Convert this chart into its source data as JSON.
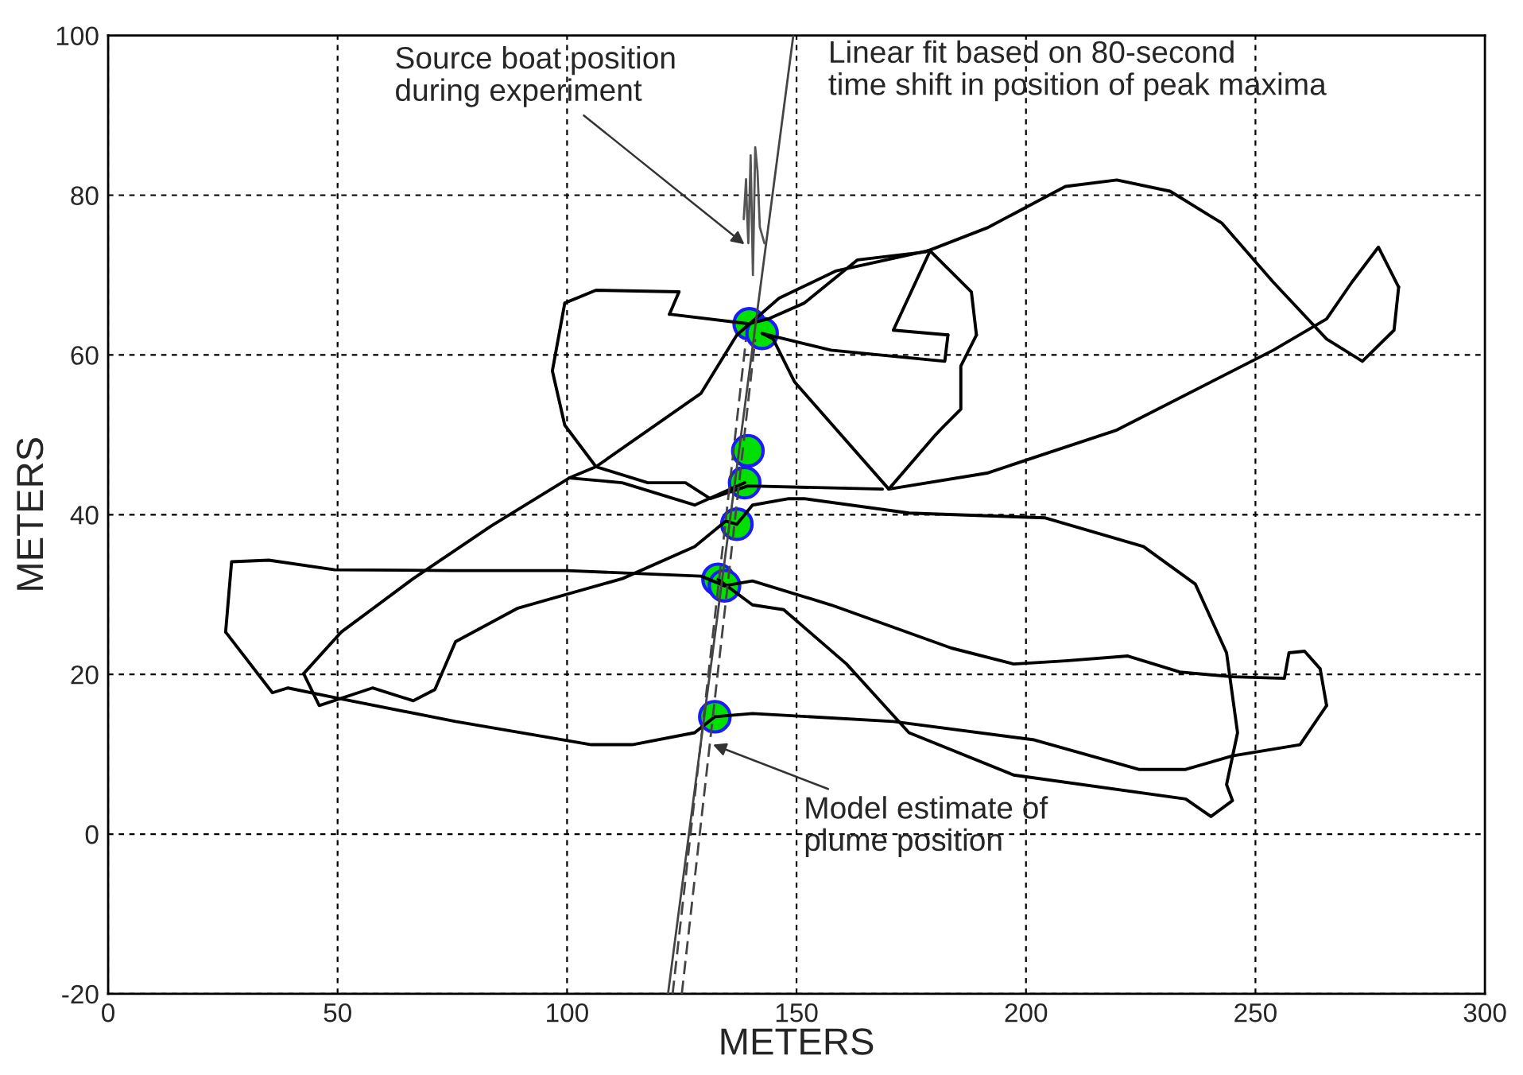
{
  "chart_data": {
    "type": "line",
    "xlabel": "METERS",
    "ylabel": "METERS",
    "xlim": [
      0,
      300
    ],
    "ylim": [
      -20,
      100
    ],
    "xticks": [
      0,
      50,
      100,
      150,
      200,
      250,
      300
    ],
    "yticks": [
      -20,
      0,
      20,
      40,
      60,
      80,
      100
    ],
    "grid": true,
    "series": [
      {
        "color": "#000000",
        "x": [
          134.3,
          129.2,
          100,
          75,
          49.4,
          35,
          26.9,
          25.6
        ],
        "values": [
          31.1,
          32.3,
          33,
          33,
          33.1,
          34.3,
          34.1,
          25.3
        ]
      },
      {
        "color": "#000000",
        "x": [
          25.6,
          35.8,
          39.2,
          49.4,
          75.7,
          105.3,
          114.2,
          127.8,
          132.2,
          140.4,
          171.1,
          201.8,
          224.6,
          234.8,
          245,
          259.7,
          265.5
        ],
        "values": [
          25.3,
          17.7,
          18.3,
          17.1,
          14.1,
          11.2,
          11.2,
          12.7,
          14.7,
          15.1,
          14.1,
          11.8,
          8.1,
          8.1,
          9.8,
          11.2,
          16.1
        ]
      },
      {
        "color": "#000000",
        "x": [
          265.5,
          264.1,
          260.7,
          257.3,
          256.3,
          245,
          233.5,
          222.2,
          208.6,
          197.3,
          183.7,
          157.5,
          140.4,
          134.3
        ],
        "values": [
          16.1,
          20.7,
          22.9,
          22.7,
          19.5,
          19.7,
          20.3,
          22.3,
          21.7,
          21.3,
          23.3,
          28.7,
          31.7,
          31.1
        ]
      },
      {
        "color": "#000000",
        "x": [
          137,
          134.6,
          127.8,
          112.1,
          89.3,
          75.7,
          71.2,
          66.5,
          57.6,
          46,
          42.6
        ],
        "values": [
          38.8,
          39.2,
          36,
          32,
          28.3,
          24.1,
          18.1,
          16.7,
          18.3,
          16.1,
          20.1
        ]
      },
      {
        "color": "#000000",
        "x": [
          42.6,
          50.8,
          66.5,
          83.5,
          100.5,
          106.3,
          129.2,
          137,
          146.2,
          158.5,
          179,
          188.1,
          189.2
        ],
        "values": [
          20.1,
          25.3,
          32,
          38.6,
          44.6,
          46,
          55.2,
          62.5,
          67.1,
          70.5,
          73.1,
          67.9,
          62.5
        ]
      },
      {
        "color": "#000000",
        "x": [
          189.2,
          185.8,
          185.8,
          182.3,
          180.3,
          170.1,
          149.6,
          144.9,
          142.5
        ],
        "values": [
          62.5,
          58.6,
          53.2,
          51.2,
          50,
          43.2,
          56.6,
          62,
          62.7
        ]
      },
      {
        "color": "#000000",
        "x": [
          170.1,
          191.5,
          219.8,
          253.9,
          265.5,
          271,
          276.8,
          281.2
        ],
        "values": [
          43.2,
          45.2,
          50.6,
          60.6,
          64.5,
          69.1,
          73.5,
          68.5
        ]
      },
      {
        "color": "#000000",
        "x": [
          281.2,
          280.2,
          273.3,
          265.5,
          253.9,
          242.7,
          231.4,
          219.8,
          208.6,
          191.5,
          178,
          163.3,
          151.7,
          143.8,
          139.7
        ],
        "values": [
          68.5,
          63.1,
          59.2,
          62,
          69.1,
          76.5,
          80.5,
          81.9,
          81.1,
          75.9,
          72.9,
          71.9,
          66.5,
          64.5,
          63.9
        ]
      },
      {
        "color": "#000000",
        "x": [
          142.5,
          157.5,
          182.3,
          183
        ],
        "values": [
          62.7,
          60.6,
          59.2,
          62.5
        ]
      },
      {
        "color": "#000000",
        "x": [
          183,
          171.1
        ],
        "values": [
          62.5,
          63.1
        ]
      },
      {
        "color": "#000000",
        "x": [
          171.1,
          179
        ],
        "values": [
          63.1,
          72.9
        ]
      },
      {
        "color": "#000000",
        "x": [
          139.7,
          122.3
        ],
        "values": [
          63.9,
          65.1
        ]
      },
      {
        "color": "#000000",
        "x": [
          122.3,
          124.4
        ],
        "values": [
          65.1,
          67.9
        ]
      },
      {
        "color": "#000000",
        "x": [
          124.4,
          106.3,
          99.5,
          96.8,
          99.5,
          106.3,
          117.6,
          125.8,
          131.2,
          139.4,
          168.7
        ],
        "values": [
          67.9,
          68.1,
          66.5,
          58,
          51.2,
          46,
          44,
          44,
          42,
          43.6,
          43.2
        ]
      },
      {
        "color": "#000000",
        "x": [
          137,
          140.4,
          148.3,
          151.7,
          174.5,
          204.2,
          225.6,
          236.9,
          243.7,
          246.1,
          243.7,
          245,
          240.3,
          234.8,
          197.3,
          174.5,
          160.9,
          147.2,
          140.4,
          132.9
        ],
        "values": [
          38.8,
          41.2,
          42,
          42,
          40.2,
          39.6,
          36,
          31.3,
          22.7,
          12.7,
          6.2,
          4.2,
          2.2,
          4.4,
          7.4,
          12.7,
          21.3,
          28.1,
          28.7,
          31.9
        ]
      },
      {
        "color": "#000000",
        "x": [
          138.7,
          127.8,
          112,
          100.5
        ],
        "values": [
          44,
          41.2,
          44,
          44.6
        ]
      },
      {
        "color": "#555555",
        "x": [
          138.5,
          139,
          139.2,
          139.5,
          140,
          140.5,
          141,
          141.5,
          142,
          143
        ],
        "values": [
          77,
          82,
          78,
          74,
          85,
          70,
          86,
          83,
          76,
          74
        ]
      },
      {
        "color": "#444444",
        "x": [
          122,
          149.3
        ],
        "values": [
          -20,
          100
        ]
      },
      {
        "color": "#444444",
        "line_style": "dashed",
        "x": [
          123,
          139
        ],
        "values": [
          -20,
          62
        ]
      },
      {
        "color": "#444444",
        "line_style": "dashed",
        "x": [
          125,
          141
        ],
        "values": [
          -20,
          62
        ]
      },
      {
        "type": "scatter",
        "color": "#00e000",
        "marker": "circle",
        "x": [
          139.7,
          142.5,
          139.4,
          138.7,
          137.0,
          132.9,
          134.3,
          132.2
        ],
        "values": [
          63.9,
          62.7,
          48.0,
          44.0,
          38.8,
          31.9,
          31.1,
          14.7
        ]
      }
    ],
    "annotations": [
      {
        "text": "Source boat position\nduring experiment",
        "x": 139.4,
        "y": 73.5
      },
      "Linear fit based on 80-second\ntime shift in position of peak maxima",
      {
        "text": "Model estimate of\nplume position",
        "x": 130.9,
        "y": 11.4
      }
    ]
  }
}
